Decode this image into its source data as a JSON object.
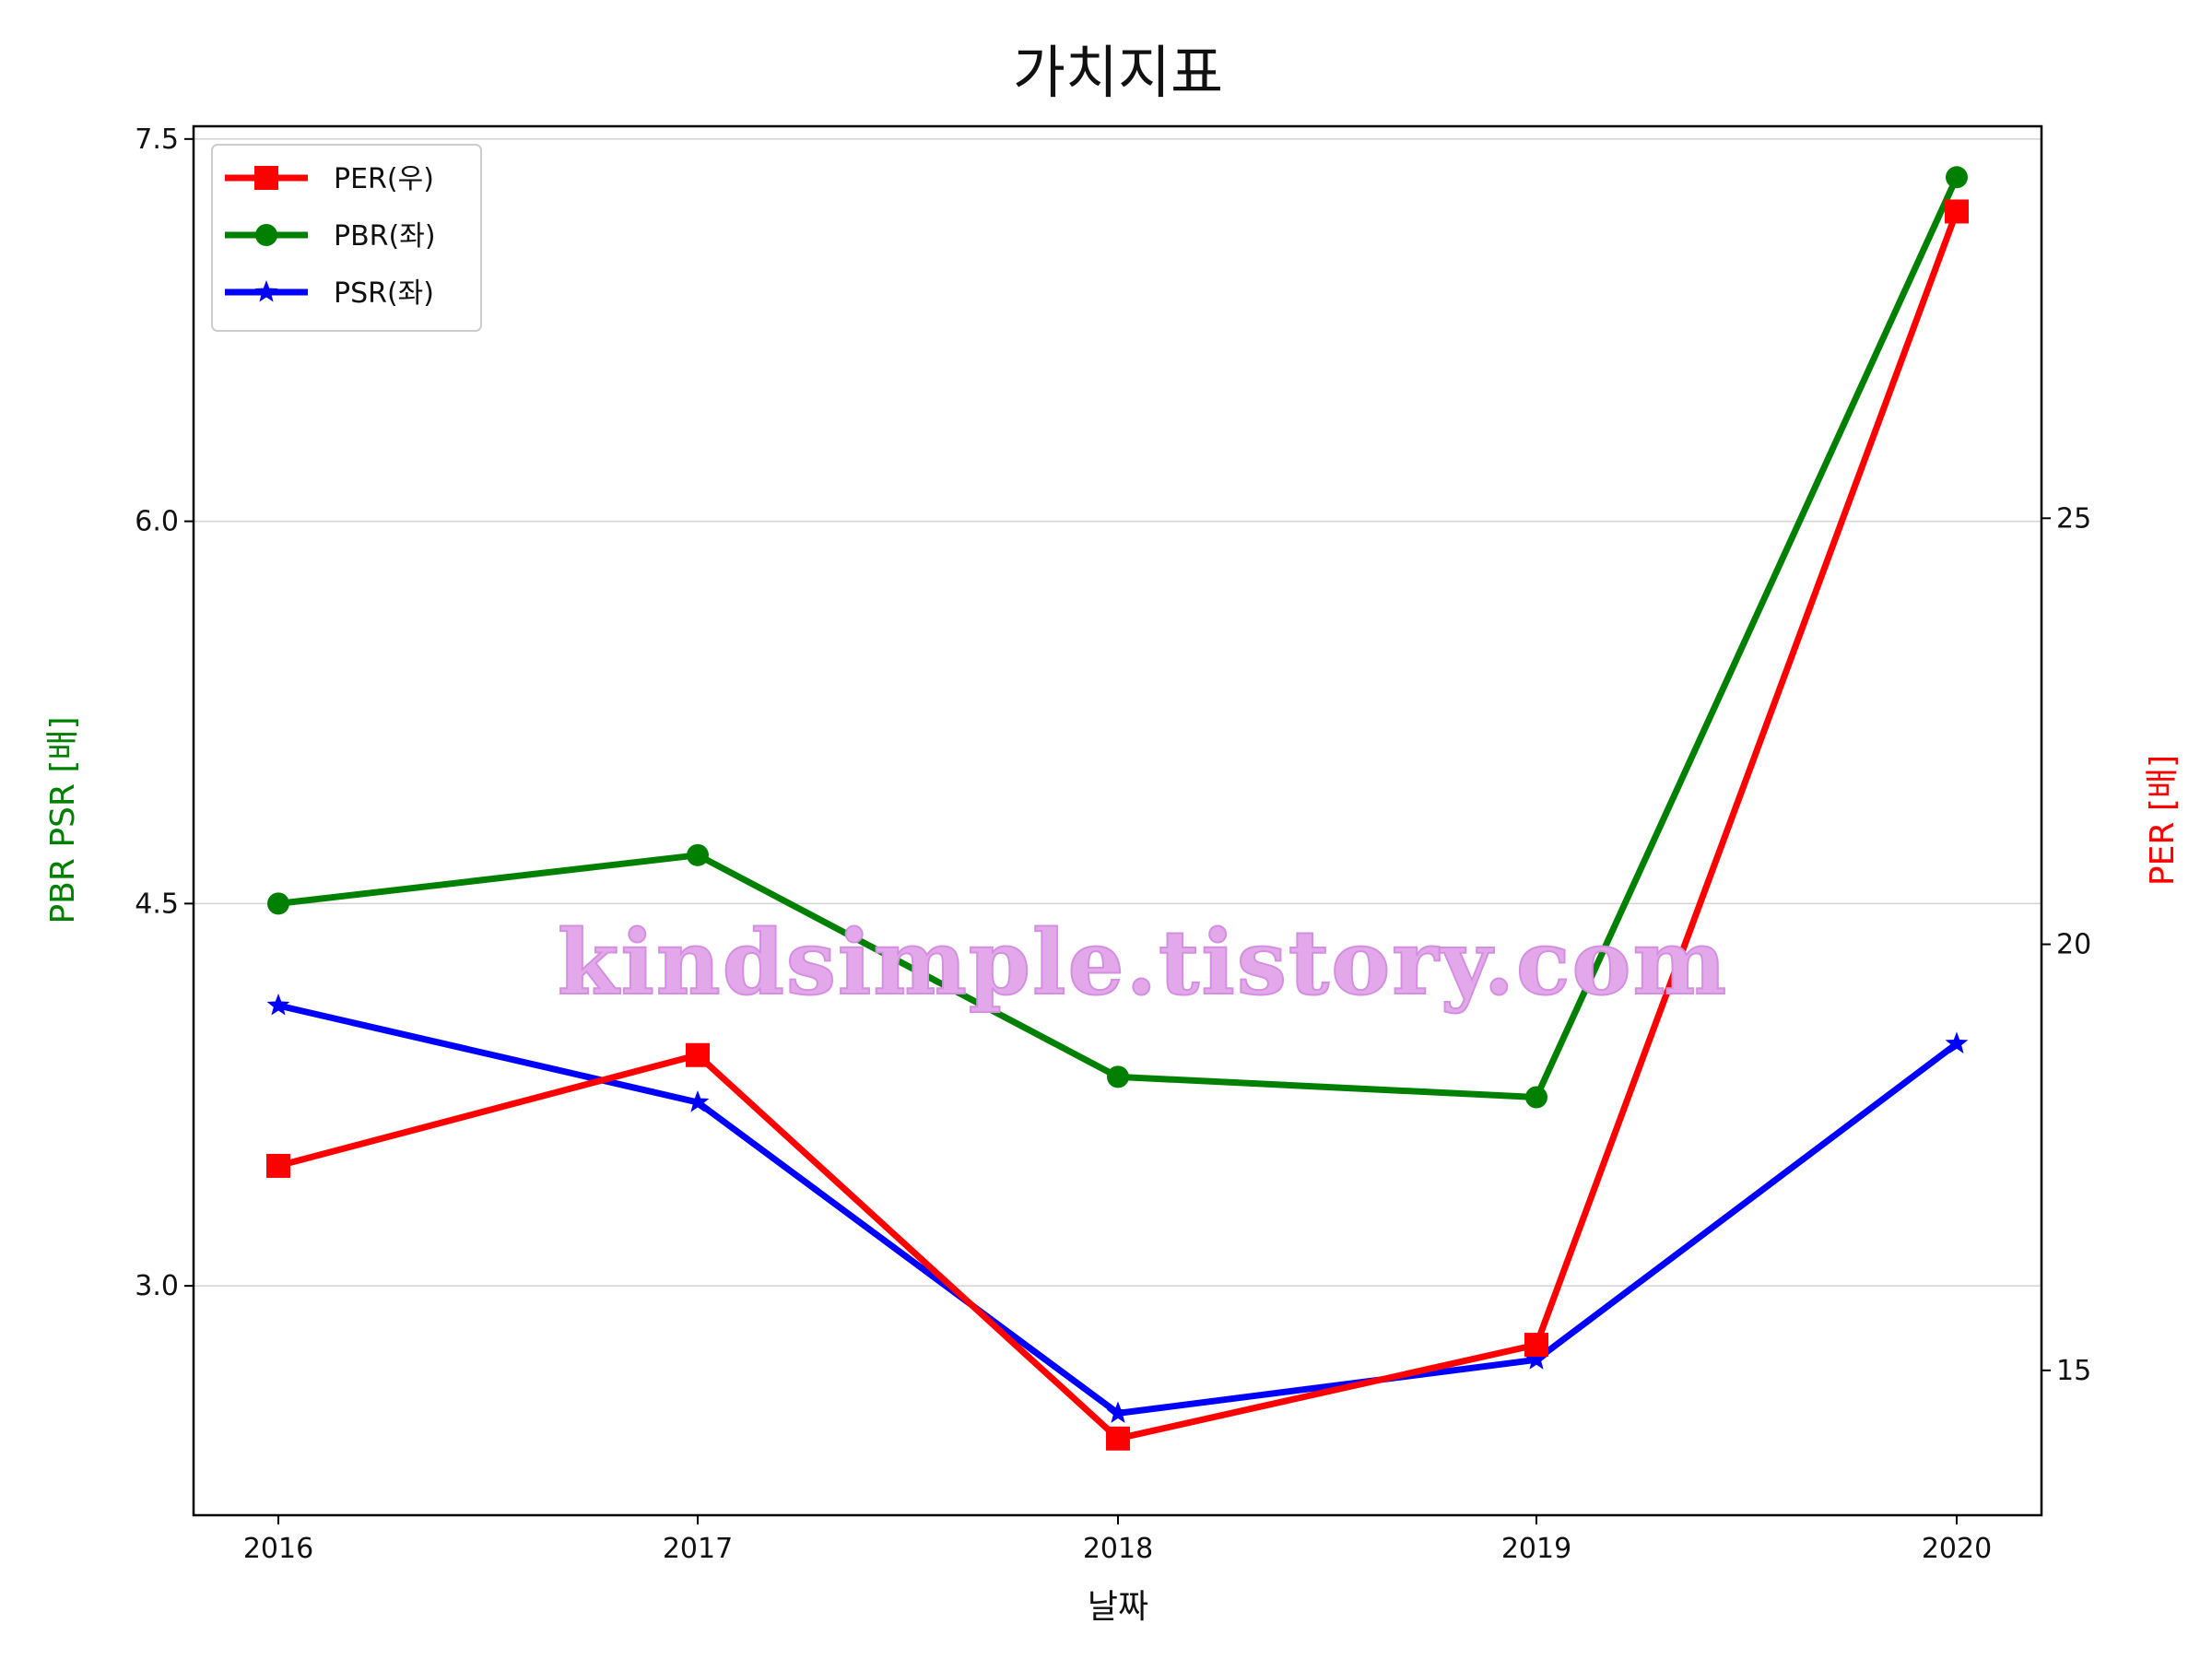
{
  "chart_data": {
    "type": "line",
    "title": "가치지표",
    "xlabel": "날짜",
    "ylabel_left": "PBR PSR [배]",
    "ylabel_right": "PER [배]",
    "ylabel_left_color": "#008000",
    "ylabel_right_color": "#ff0000",
    "categories": [
      "2016",
      "2017",
      "2018",
      "2019",
      "2020"
    ],
    "y_left": {
      "lim": [
        2.1,
        7.55
      ],
      "ticks": [
        3.0,
        4.5,
        6.0,
        7.5
      ],
      "tick_labels": [
        "3.0",
        "4.5",
        "6.0",
        "7.5"
      ]
    },
    "y_right": {
      "lim": [
        13.3,
        29.6
      ],
      "ticks": [
        15,
        20,
        25
      ],
      "tick_labels": [
        "15",
        "20",
        "25"
      ]
    },
    "grid": "horizontal-left",
    "legend_position": "upper-left",
    "series": [
      {
        "name": "PER(우)",
        "axis": "right",
        "color": "#ff0000",
        "marker": "square",
        "values": [
          17.4,
          18.7,
          14.2,
          15.3,
          28.6
        ]
      },
      {
        "name": "PBR(좌)",
        "axis": "left",
        "color": "#008000",
        "marker": "circle",
        "values": [
          4.5,
          4.69,
          3.82,
          3.74,
          7.35
        ]
      },
      {
        "name": "PSR(좌)",
        "axis": "left",
        "color": "#0000ff",
        "marker": "star",
        "values": [
          4.1,
          3.72,
          2.5,
          2.71,
          3.95
        ]
      }
    ]
  },
  "watermark": "kindsimple.tistory.com"
}
